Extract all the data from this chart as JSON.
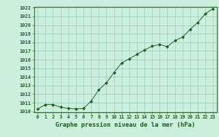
{
  "x": [
    0,
    1,
    2,
    3,
    4,
    5,
    6,
    7,
    8,
    9,
    10,
    11,
    12,
    13,
    14,
    15,
    16,
    17,
    18,
    19,
    20,
    21,
    22,
    23
  ],
  "y": [
    1010.3,
    1010.8,
    1010.8,
    1010.5,
    1010.35,
    1010.3,
    1010.35,
    1011.2,
    1012.5,
    1013.3,
    1014.5,
    1015.6,
    1016.1,
    1016.6,
    1017.1,
    1017.55,
    1017.75,
    1017.5,
    1018.2,
    1018.6,
    1019.5,
    1020.3,
    1021.3,
    1021.9
  ],
  "line_color": "#1a5c1a",
  "marker": "D",
  "marker_size": 2.2,
  "bg_color": "#cceedd",
  "grid_color": "#99ccbb",
  "title": "Graphe pression niveau de la mer (hPa)",
  "ylim": [
    1010,
    1022
  ],
  "xlim": [
    -0.5,
    23.5
  ],
  "yticks": [
    1010,
    1011,
    1012,
    1013,
    1014,
    1015,
    1016,
    1017,
    1018,
    1019,
    1020,
    1021,
    1022
  ],
  "xticks": [
    0,
    1,
    2,
    3,
    4,
    5,
    6,
    7,
    8,
    9,
    10,
    11,
    12,
    13,
    14,
    15,
    16,
    17,
    18,
    19,
    20,
    21,
    22,
    23
  ],
  "title_fontsize": 6.5,
  "tick_fontsize": 5.0,
  "title_color": "#1a5c1a",
  "tick_color": "#1a5c1a",
  "spine_color": "#336633"
}
